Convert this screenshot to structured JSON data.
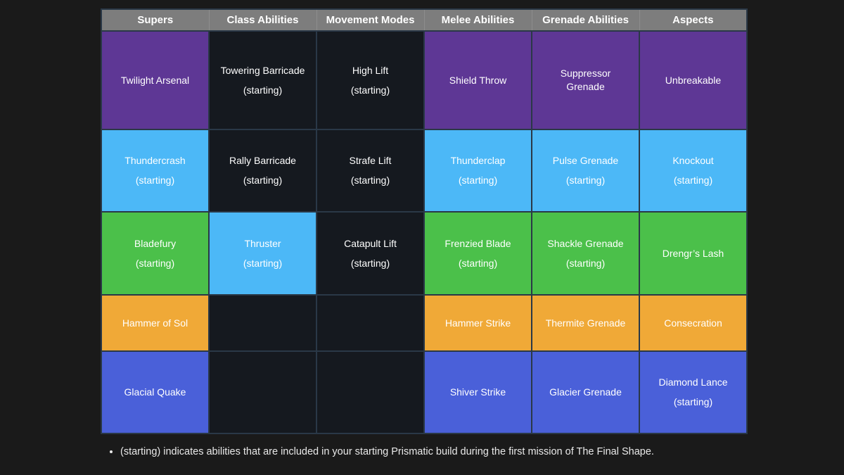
{
  "table": {
    "columns": [
      "Supers",
      "Class Abilities",
      "Movement Modes",
      "Melee Abilities",
      "Grenade Abilities",
      "Aspects"
    ],
    "rows": [
      {
        "cells": [
          {
            "element": "void",
            "lines": [
              "Twilight Arsenal"
            ]
          },
          {
            "element": "dark",
            "lines": [
              "Towering Barricade",
              "(starting)"
            ]
          },
          {
            "element": "dark",
            "lines": [
              "High Lift",
              "(starting)"
            ]
          },
          {
            "element": "void",
            "lines": [
              "Shield Throw"
            ]
          },
          {
            "element": "void",
            "lines": [
              "Suppressor Grenade"
            ]
          },
          {
            "element": "void",
            "lines": [
              "Unbreakable"
            ]
          }
        ]
      },
      {
        "cells": [
          {
            "element": "arc",
            "lines": [
              "Thundercrash",
              "(starting)"
            ]
          },
          {
            "element": "dark",
            "lines": [
              "Rally Barricade",
              "(starting)"
            ]
          },
          {
            "element": "dark",
            "lines": [
              "Strafe Lift",
              "(starting)"
            ]
          },
          {
            "element": "arc",
            "lines": [
              "Thunderclap",
              "(starting)"
            ]
          },
          {
            "element": "arc",
            "lines": [
              "Pulse Grenade",
              "(starting)"
            ]
          },
          {
            "element": "arc",
            "lines": [
              "Knockout",
              "(starting)"
            ]
          }
        ]
      },
      {
        "cells": [
          {
            "element": "strand",
            "lines": [
              "Bladefury",
              "(starting)"
            ]
          },
          {
            "element": "arc",
            "lines": [
              "Thruster",
              "(starting)"
            ]
          },
          {
            "element": "dark",
            "lines": [
              "Catapult Lift",
              "(starting)"
            ]
          },
          {
            "element": "strand",
            "lines": [
              "Frenzied Blade",
              "(starting)"
            ]
          },
          {
            "element": "strand",
            "lines": [
              "Shackle Grenade",
              "(starting)"
            ]
          },
          {
            "element": "strand",
            "lines": [
              "Drengr’s Lash"
            ]
          }
        ]
      },
      {
        "cells": [
          {
            "element": "solar",
            "lines": [
              "Hammer of Sol"
            ]
          },
          {
            "element": "dark",
            "lines": []
          },
          {
            "element": "dark",
            "lines": []
          },
          {
            "element": "solar",
            "lines": [
              "Hammer Strike"
            ]
          },
          {
            "element": "solar",
            "lines": [
              "Thermite Grenade"
            ]
          },
          {
            "element": "solar",
            "lines": [
              "Consecration"
            ]
          }
        ]
      },
      {
        "cells": [
          {
            "element": "stasis",
            "lines": [
              "Glacial Quake"
            ]
          },
          {
            "element": "dark",
            "lines": []
          },
          {
            "element": "dark",
            "lines": []
          },
          {
            "element": "stasis",
            "lines": [
              "Shiver Strike"
            ]
          },
          {
            "element": "stasis",
            "lines": [
              "Glacier Grenade"
            ]
          },
          {
            "element": "stasis",
            "lines": [
              "Diamond Lance",
              "(starting)"
            ]
          }
        ]
      }
    ]
  },
  "footnote": "(starting) indicates abilities that are included in your starting Prismatic build during the first mission of The Final Shape.",
  "colors": {
    "void": "#5e3795",
    "arc": "#4cb8f7",
    "strand": "#4bc04a",
    "solar": "#f0a937",
    "stasis": "#4a60d9",
    "dark": "#15191f",
    "header_bg": "#7d7d7d",
    "border": "#2a3847",
    "page_bg": "#1a1a1a",
    "text": "#ffffff"
  }
}
